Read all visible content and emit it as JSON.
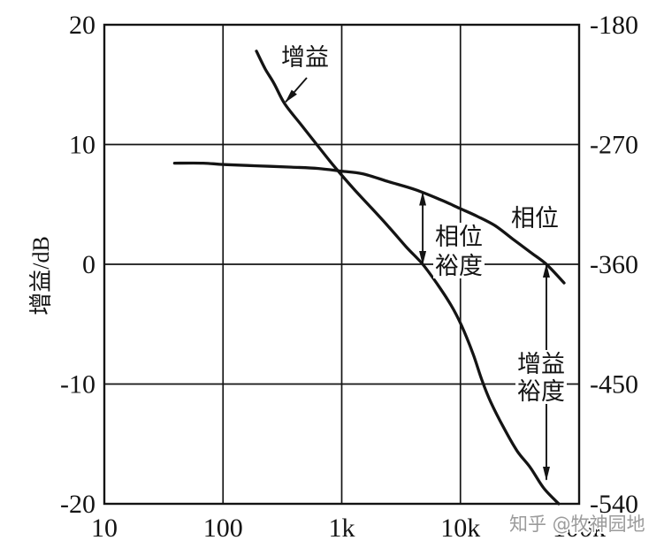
{
  "watermark": "知乎 @牧神园地",
  "chart_data": {
    "type": "line",
    "ylabel": "增益/dB",
    "x_scale": "log",
    "xlim": [
      10,
      100000
    ],
    "ylim": [
      -20,
      20
    ],
    "y2lim": [
      -540,
      -180
    ],
    "grid": true,
    "x_ticks": [
      {
        "value": 10,
        "label": "10"
      },
      {
        "value": 100,
        "label": "100"
      },
      {
        "value": 1000,
        "label": "1k"
      },
      {
        "value": 10000,
        "label": "10k"
      },
      {
        "value": 100000,
        "label": "100k"
      }
    ],
    "y_ticks": [
      20,
      10,
      0,
      -10,
      -20
    ],
    "y2_ticks": [
      -180,
      -270,
      -360,
      -450,
      -540
    ],
    "series": [
      {
        "name": "增益",
        "axis": "left",
        "x": [
          191,
          227,
          269,
          331,
          451,
          583,
          754,
          895,
          1260,
          1780,
          2500,
          3530,
          4810,
          6430,
          8320,
          10200,
          12800,
          15200,
          18000,
          23300,
          30100,
          39000,
          50400,
          67400
        ],
        "y": [
          17.8,
          16.3,
          15.1,
          13.4,
          11.7,
          10.3,
          8.9,
          8.0,
          6.3,
          4.7,
          3.1,
          1.4,
          0.0,
          -1.7,
          -3.4,
          -5.1,
          -7.5,
          -9.7,
          -11.5,
          -13.7,
          -15.6,
          -17.0,
          -18.7,
          -20.0
        ]
      },
      {
        "name": "相位",
        "axis": "right",
        "x": [
          39,
          68,
          100,
          191,
          379,
          635,
          990,
          1500,
          2500,
          4190,
          7000,
          9870,
          13900,
          19600,
          27600,
          38900,
          53000,
          74700
        ],
        "y": [
          -284,
          -284,
          -285,
          -286,
          -287,
          -288,
          -290,
          -292,
          -298,
          -304,
          -312,
          -318,
          -324,
          -331,
          -341,
          -351,
          -360,
          -374
        ]
      }
    ],
    "annotations": [
      {
        "lines": [
          "相位",
          "裕度"
        ],
        "axis": "right",
        "x": 4810,
        "y_from": -360,
        "y_to": -306
      },
      {
        "lines": [
          "增益",
          "裕度"
        ],
        "axis": "left",
        "x": 53000,
        "y_from": 0,
        "y_to": -18
      }
    ]
  }
}
